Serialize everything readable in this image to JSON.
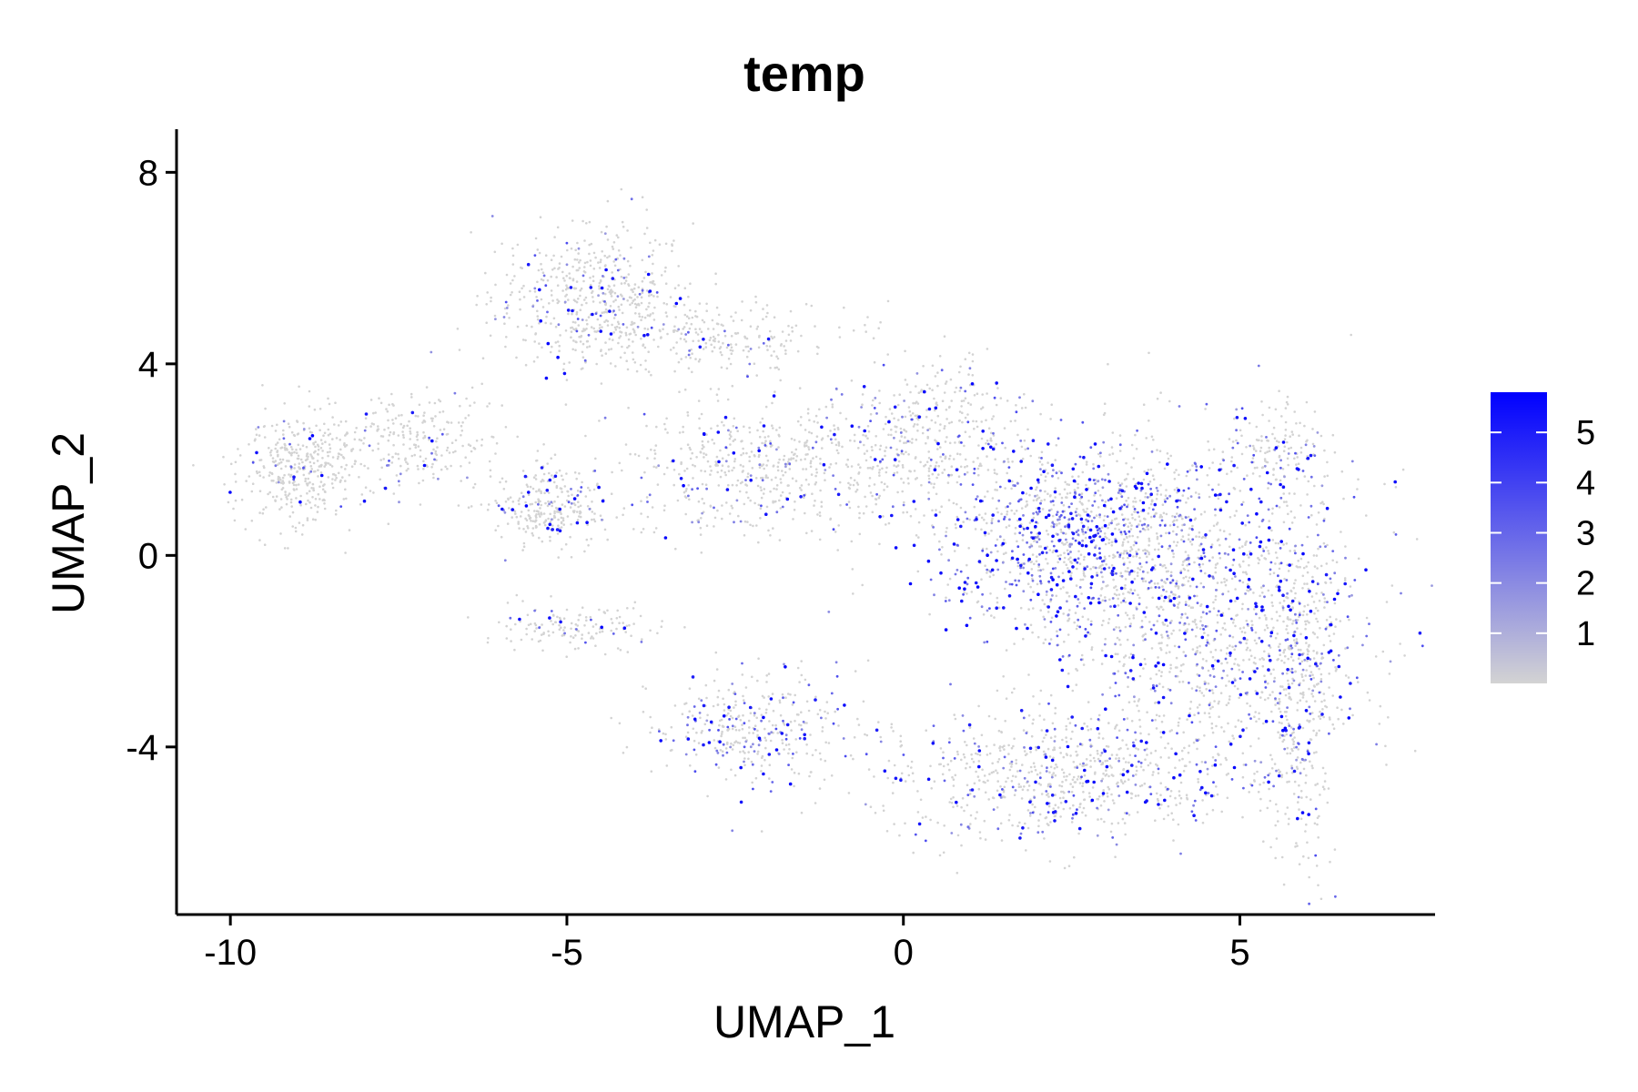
{
  "chart_data": {
    "type": "scatter",
    "title": "temp",
    "xlabel": "UMAP_1",
    "ylabel": "UMAP_2",
    "xlim": [
      -10.8,
      7.9
    ],
    "ylim": [
      -7.5,
      8.9
    ],
    "x_ticks": [
      -10,
      -5,
      0,
      5
    ],
    "x_tick_labels": [
      "-10",
      "-5",
      "0",
      "5"
    ],
    "y_ticks": [
      -4,
      0,
      4,
      8
    ],
    "y_tick_labels": [
      "-4",
      "0",
      "4",
      "8"
    ],
    "grid": false,
    "point_color_low": "#d3d3d3",
    "point_color_high": "#0000ff",
    "legend": {
      "type": "colorbar",
      "placement": "right",
      "min": 0,
      "max": 5.8,
      "ticks": [
        1,
        2,
        3,
        4,
        5
      ],
      "tick_labels": [
        "1",
        "2",
        "3",
        "4",
        "5"
      ]
    },
    "point_regions": [
      {
        "name": "upper-left lobe",
        "cx": -4.6,
        "cy": 5.4,
        "sx": 0.95,
        "sy": 1.0,
        "weight": 0.07,
        "high_frac": 0.04
      },
      {
        "name": "upper-left ridge",
        "cx": -3.2,
        "cy": 4.6,
        "sx": 1.6,
        "sy": 0.5,
        "weight": 0.04,
        "high_frac": 0.03
      },
      {
        "name": "left lobe",
        "cx": -9.0,
        "cy": 1.8,
        "sx": 0.55,
        "sy": 0.7,
        "weight": 0.05,
        "high_frac": 0.02
      },
      {
        "name": "left arm",
        "cx": -7.4,
        "cy": 2.4,
        "sx": 1.0,
        "sy": 0.7,
        "weight": 0.04,
        "high_frac": 0.02
      },
      {
        "name": "left-center cluster",
        "cx": -5.2,
        "cy": 1.0,
        "sx": 0.6,
        "sy": 0.55,
        "weight": 0.04,
        "high_frac": 0.03
      },
      {
        "name": "diagonal band",
        "cx": -2.0,
        "cy": 1.8,
        "sx": 1.5,
        "sy": 0.9,
        "weight": 0.08,
        "high_frac": 0.04
      },
      {
        "name": "lower-left tail",
        "cx": -4.8,
        "cy": -1.5,
        "sx": 0.8,
        "sy": 0.3,
        "weight": 0.02,
        "high_frac": 0.03
      },
      {
        "name": "lower-middle cluster",
        "cx": -2.3,
        "cy": -3.6,
        "sx": 0.9,
        "sy": 0.75,
        "weight": 0.05,
        "high_frac": 0.09
      },
      {
        "name": "upper-center",
        "cx": 0.4,
        "cy": 2.6,
        "sx": 1.0,
        "sy": 0.9,
        "weight": 0.05,
        "high_frac": 0.05
      },
      {
        "name": "center-right core",
        "cx": 2.6,
        "cy": 0.5,
        "sx": 1.6,
        "sy": 1.3,
        "weight": 0.17,
        "high_frac": 0.15
      },
      {
        "name": "right cluster",
        "cx": 4.5,
        "cy": -1.5,
        "sx": 1.5,
        "sy": 1.9,
        "weight": 0.15,
        "high_frac": 0.1
      },
      {
        "name": "bottom band",
        "cx": 2.3,
        "cy": -4.6,
        "sx": 1.9,
        "sy": 0.9,
        "weight": 0.11,
        "high_frac": 0.07
      },
      {
        "name": "far-right strip",
        "cx": 5.9,
        "cy": -2.5,
        "sx": 0.35,
        "sy": 2.7,
        "weight": 0.06,
        "high_frac": 0.08
      },
      {
        "name": "upper-right corner",
        "cx": 5.5,
        "cy": 2.2,
        "sx": 0.6,
        "sy": 0.6,
        "weight": 0.02,
        "high_frac": 0.05
      }
    ]
  }
}
